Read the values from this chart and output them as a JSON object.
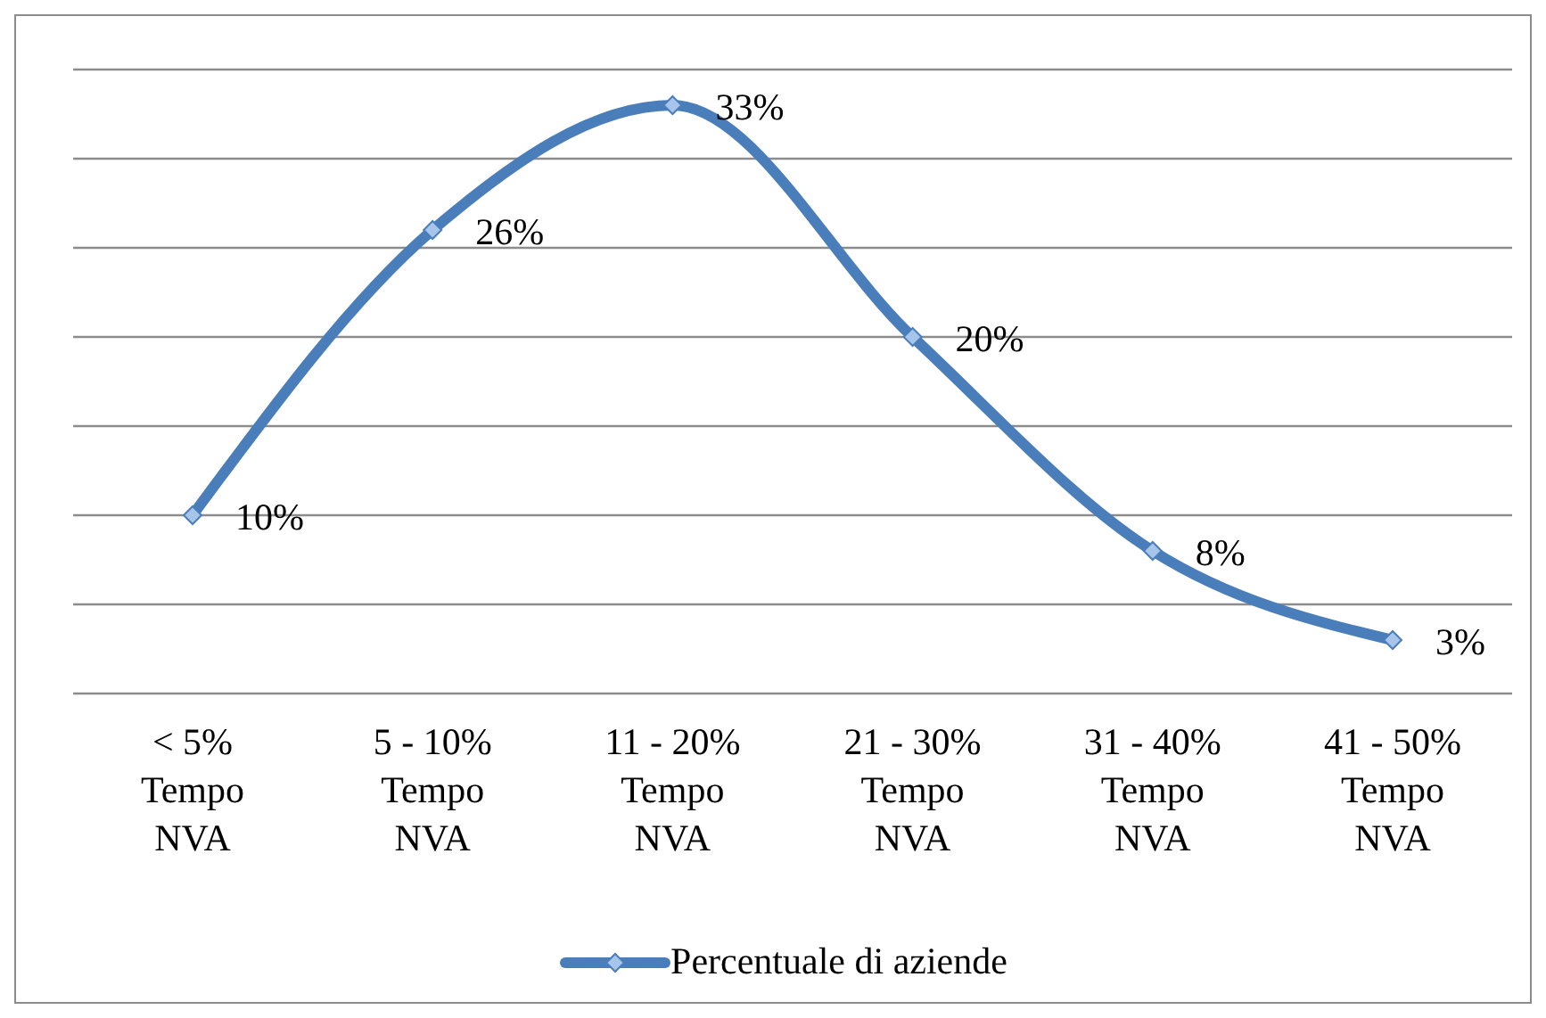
{
  "chart_data": {
    "type": "line",
    "categories": [
      "< 5%\nTempo\nNVA",
      "5 - 10%\nTempo\nNVA",
      "11 - 20%\nTempo\nNVA",
      "21 - 30%\nTempo\nNVA",
      "31 - 40%\nTempo\nNVA",
      "41 - 50%\nTempo\nNVA"
    ],
    "series": [
      {
        "name": "Percentuale di aziende",
        "color": "#4a7ebb",
        "values": [
          10,
          26,
          33,
          20,
          8,
          3
        ],
        "value_labels": [
          "10%",
          "26%",
          "33%",
          "20%",
          "8%",
          "3%"
        ]
      }
    ],
    "ylim": [
      0,
      35
    ],
    "tick_labels": "x",
    "grid": "y",
    "legend": "bottom",
    "marker": "diamond",
    "line_style": "solid"
  }
}
